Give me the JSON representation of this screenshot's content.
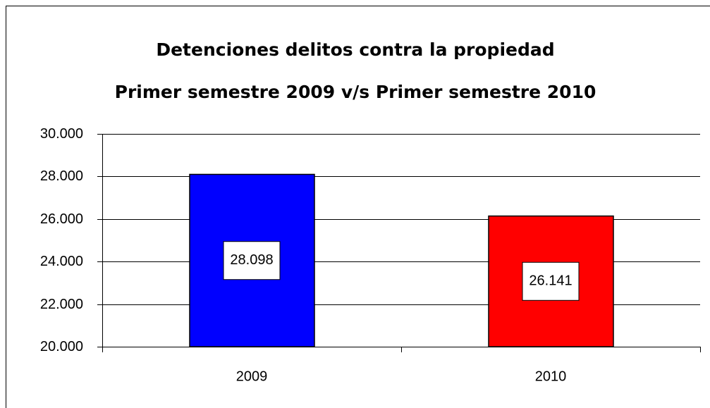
{
  "chart_data": {
    "type": "bar",
    "title": [
      "Detenciones delitos contra la propiedad",
      "Primer semestre 2009  v/s Primer semestre 2010"
    ],
    "categories": [
      "2009",
      "2010"
    ],
    "values": [
      28098,
      26141
    ],
    "value_labels": [
      "28.098",
      "26.141"
    ],
    "colors": [
      "#0000ff",
      "#ff0000"
    ],
    "ylim": [
      20000,
      30000
    ],
    "yticks": [
      {
        "value": 20000,
        "label": "20.000"
      },
      {
        "value": 22000,
        "label": "22.000"
      },
      {
        "value": 24000,
        "label": "24.000"
      },
      {
        "value": 26000,
        "label": "26.000"
      },
      {
        "value": 28000,
        "label": "28.000"
      },
      {
        "value": 30000,
        "label": "30.000"
      }
    ],
    "grid": true
  }
}
